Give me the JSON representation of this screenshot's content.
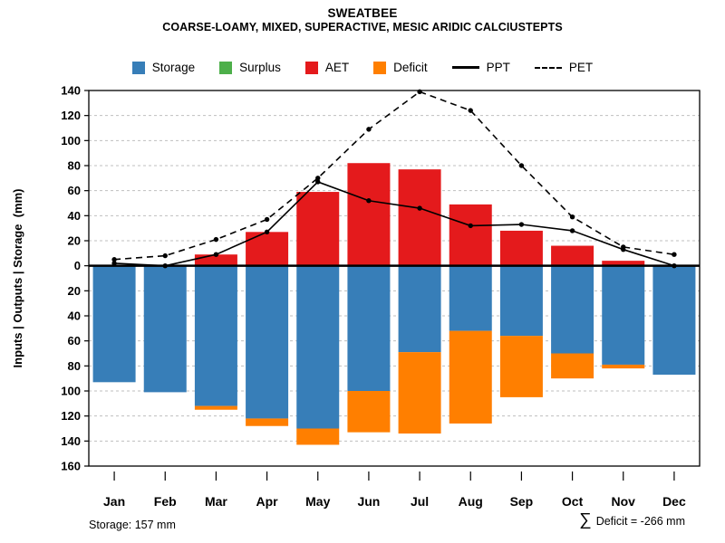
{
  "chart_data": {
    "type": "bar",
    "title": "SWEATBEE",
    "subtitle": "COARSE-LOAMY, MIXED, SUPERACTIVE, MESIC ARIDIC CALCIUSTEPTS",
    "ylabel": "Inputs | Outputs | Storage  (mm)",
    "xlabel": "",
    "ylim": [
      -160,
      140
    ],
    "y_tick_step": 20,
    "y_tick_labels_absolute": true,
    "grid": true,
    "legend_position": "top",
    "categories": [
      "Jan",
      "Feb",
      "Mar",
      "Apr",
      "May",
      "Jun",
      "Jul",
      "Aug",
      "Sep",
      "Oct",
      "Nov",
      "Dec"
    ],
    "series": [
      {
        "name": "Storage",
        "kind": "bar",
        "direction": "down",
        "color": "#377EB8",
        "values": [
          93,
          101,
          112,
          122,
          130,
          100,
          69,
          52,
          56,
          70,
          79,
          87
        ]
      },
      {
        "name": "Surplus",
        "kind": "bar",
        "direction": "up",
        "color": "#4DAF4A",
        "values": [
          0,
          0,
          0,
          0,
          0,
          0,
          0,
          0,
          0,
          0,
          0,
          0
        ]
      },
      {
        "name": "AET",
        "kind": "bar",
        "direction": "up",
        "color": "#E41A1C",
        "values": [
          0,
          0,
          9,
          27,
          59,
          82,
          77,
          49,
          28,
          16,
          4,
          0
        ]
      },
      {
        "name": "Deficit",
        "kind": "bar",
        "direction": "down",
        "color": "#FF7F00",
        "values": [
          0,
          0,
          3,
          6,
          13,
          33,
          65,
          74,
          49,
          20,
          3,
          0
        ]
      },
      {
        "name": "PPT",
        "kind": "line",
        "style": "solid",
        "color": "#000000",
        "values": [
          2,
          0,
          9,
          27,
          67,
          52,
          46,
          32,
          33,
          28,
          13,
          0
        ]
      },
      {
        "name": "PET",
        "kind": "line",
        "style": "dashed",
        "color": "#000000",
        "values": [
          5,
          8,
          21,
          37,
          70,
          109,
          139,
          124,
          80,
          39,
          15,
          9
        ]
      }
    ],
    "annotations": {
      "sigma": "∑",
      "bottom_left": "Storage: 157 mm",
      "bottom_right": "Deficit = -266 mm"
    },
    "style": {
      "grid_color": "#bfbfbf",
      "axis_color": "#000000",
      "zero_line_width": 2.5
    }
  }
}
